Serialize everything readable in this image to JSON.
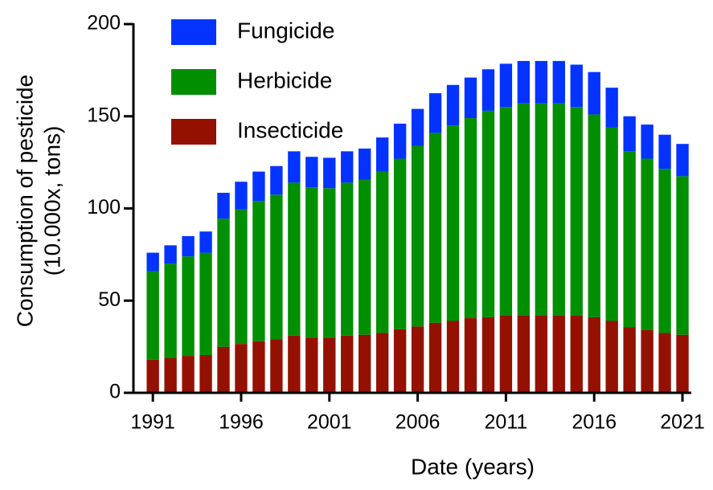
{
  "chart_data": {
    "type": "stacked_bar",
    "ylabel": [
      "Consumption of pesticide",
      "(10.000x, tons)"
    ],
    "xlabel": "Date (years)",
    "x": [
      1991,
      1992,
      1993,
      1994,
      1995,
      1996,
      1997,
      1998,
      1999,
      2000,
      2001,
      2002,
      2003,
      2004,
      2005,
      2006,
      2007,
      2008,
      2009,
      2010,
      2011,
      2012,
      2013,
      2014,
      2015,
      2016,
      2017,
      2018,
      2019,
      2020,
      2021
    ],
    "series": [
      {
        "name": "Insecticide",
        "color": "#941100",
        "values": [
          18,
          19,
          20,
          20.5,
          25,
          26.5,
          28,
          29,
          31,
          30,
          30,
          31,
          31.5,
          32.5,
          34.5,
          36,
          38,
          39,
          40.5,
          41,
          42,
          42,
          42,
          42,
          42,
          41,
          39,
          35.5,
          34,
          32.5,
          31.5
        ]
      },
      {
        "name": "Herbicide",
        "color": "#008f00",
        "values": [
          48,
          51,
          54,
          55.5,
          69.5,
          73,
          76,
          78.5,
          83,
          81.5,
          81,
          83,
          84,
          87.5,
          92.5,
          98,
          103,
          106,
          108.5,
          112,
          113,
          115,
          115,
          115,
          113,
          110,
          105,
          95.5,
          93,
          89,
          86
        ]
      },
      {
        "name": "Fungicide",
        "color": "#0433ff",
        "values": [
          10,
          10,
          11,
          11.5,
          14,
          15,
          16,
          15.5,
          17,
          16.5,
          16.5,
          17,
          17,
          18.5,
          19,
          20,
          21.5,
          22,
          22,
          22.5,
          23.5,
          23,
          23,
          23,
          23,
          23,
          21.5,
          19,
          18.5,
          18.5,
          17.5
        ]
      }
    ],
    "xlim": [
      1989.9,
      2021.5
    ],
    "xticks": [
      1991,
      1996,
      2001,
      2006,
      2011,
      2016,
      2021
    ],
    "ylim": [
      0,
      200
    ],
    "yticks": [
      0,
      50,
      100,
      150,
      200
    ],
    "legend": "upper left"
  }
}
